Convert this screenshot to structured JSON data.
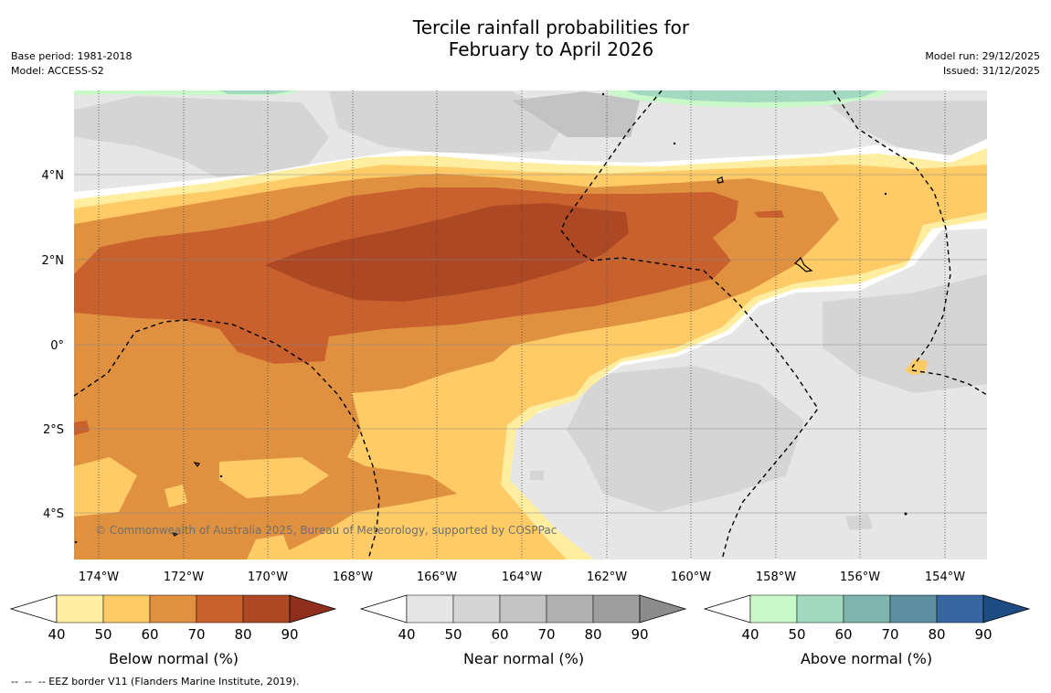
{
  "title": {
    "line1": "Tercile rainfall probabilities for",
    "line2": "February to April 2026"
  },
  "meta_left": {
    "base_period": "Base period: 1981-2018",
    "model": "Model: ACCESS-S2"
  },
  "meta_right": {
    "model_run": "Model run: 29/12/2025",
    "issued": "Issued: 31/12/2025"
  },
  "map": {
    "copyright": "© Commonwealth of Australia 2025, Bureau of Meteorology, supported by COSPPac",
    "lon_labels": [
      "174°W",
      "172°W",
      "170°W",
      "168°W",
      "166°W",
      "164°W",
      "162°W",
      "160°W",
      "158°W",
      "156°W",
      "154°W"
    ],
    "lat_labels": [
      "4°N",
      "2°N",
      "0°",
      "2°S",
      "4°S"
    ],
    "colors": {
      "below": [
        "#ffeea0",
        "#fecb66",
        "#e0913f",
        "#c9612f",
        "#ad4824",
        "#8f2e1c"
      ],
      "near": [
        "#e6e6e6",
        "#d5d5d5",
        "#c3c3c3",
        "#b0b0b0",
        "#9e9e9e",
        "#8c8c8c"
      ],
      "above": [
        "#caf9c9",
        "#a2d9c0",
        "#7fb4ac",
        "#5e8fa0",
        "#3766a0",
        "#1d4c82"
      ]
    }
  },
  "legends": {
    "below": {
      "label": "Below normal (%)",
      "ticks": [
        "40",
        "50",
        "60",
        "70",
        "80",
        "90"
      ]
    },
    "near": {
      "label": "Near normal (%)",
      "ticks": [
        "40",
        "50",
        "60",
        "70",
        "80",
        "90"
      ]
    },
    "above": {
      "label": "Above normal (%)",
      "ticks": [
        "40",
        "50",
        "60",
        "70",
        "80",
        "90"
      ]
    }
  },
  "footer": "--  --  -- EEZ border V11 (Flanders Marine Institute, 2019)."
}
